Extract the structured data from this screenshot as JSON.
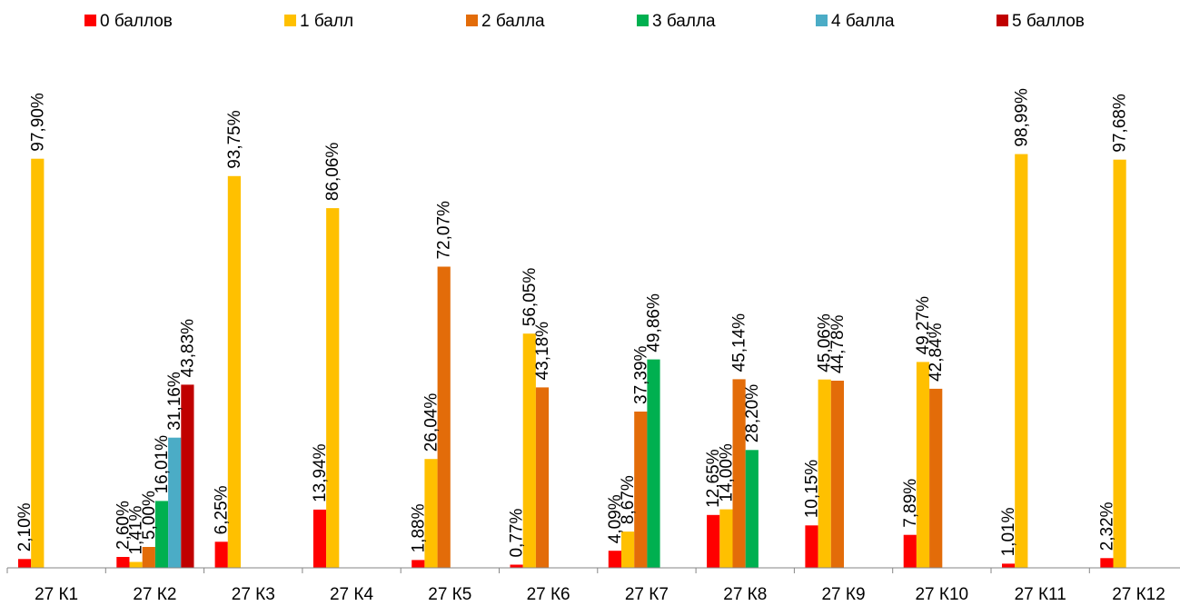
{
  "chart_data": {
    "type": "bar",
    "categories": [
      "27 К1",
      "27 К2",
      "27 К3",
      "27 К4",
      "27 К5",
      "27 К6",
      "27 К7",
      "27 К8",
      "27 К9",
      "27 К10",
      "27 К11",
      "27 К12"
    ],
    "series": [
      {
        "name": "0 баллов",
        "color": "#ff0000",
        "values": [
          2.1,
          2.6,
          6.25,
          13.94,
          1.88,
          0.77,
          4.09,
          12.65,
          10.15,
          7.89,
          1.01,
          2.32
        ],
        "labels": [
          "2,10%",
          "2,60%",
          "6,25%",
          "13,94%",
          "1,88%",
          "0,77%",
          "4,09%",
          "12,65%",
          "10,15%",
          "7,89%",
          "1,01%",
          "2,32%"
        ]
      },
      {
        "name": "1 балл",
        "color": "#ffc000",
        "values": [
          97.9,
          1.41,
          93.75,
          86.06,
          26.04,
          56.05,
          8.67,
          14.0,
          45.06,
          49.27,
          98.99,
          97.68
        ],
        "labels": [
          "97,90%",
          "1,41%",
          "93,75%",
          "86,06%",
          "26,04%",
          "56,05%",
          "8,67%",
          "14,00%",
          "45,06%",
          "49,27%",
          "98,99%",
          "97,68%"
        ]
      },
      {
        "name": "2 балла",
        "color": "#e36c09",
        "values": [
          null,
          5.0,
          null,
          null,
          72.07,
          43.18,
          37.39,
          45.14,
          44.78,
          42.84,
          null,
          null
        ],
        "labels": [
          null,
          "5,00%",
          null,
          null,
          "72,07%",
          "43,18%",
          "37,39%",
          "45,14%",
          "44,78%",
          "42,84%",
          null,
          null
        ]
      },
      {
        "name": "3 балла",
        "color": "#00b050",
        "values": [
          null,
          16.01,
          null,
          null,
          null,
          null,
          49.86,
          28.2,
          null,
          null,
          null,
          null
        ],
        "labels": [
          null,
          "16,01%",
          null,
          null,
          null,
          null,
          "49,86%",
          "28,20%",
          null,
          null,
          null,
          null
        ]
      },
      {
        "name": "4 балла",
        "color": "#4bacc6",
        "values": [
          null,
          31.16,
          null,
          null,
          null,
          null,
          null,
          null,
          null,
          null,
          null,
          null
        ],
        "labels": [
          null,
          "31,16%",
          null,
          null,
          null,
          null,
          null,
          null,
          null,
          null,
          null,
          null
        ]
      },
      {
        "name": "5 баллов",
        "color": "#c00000",
        "values": [
          null,
          43.83,
          null,
          null,
          null,
          null,
          null,
          null,
          null,
          null,
          null,
          null
        ],
        "labels": [
          null,
          "43,83%",
          null,
          null,
          null,
          null,
          null,
          null,
          null,
          null,
          null,
          null
        ]
      }
    ],
    "title": "",
    "xlabel": "",
    "ylabel": "",
    "ylim": [
      0,
      100
    ],
    "grid": false,
    "legend_position": "top"
  }
}
